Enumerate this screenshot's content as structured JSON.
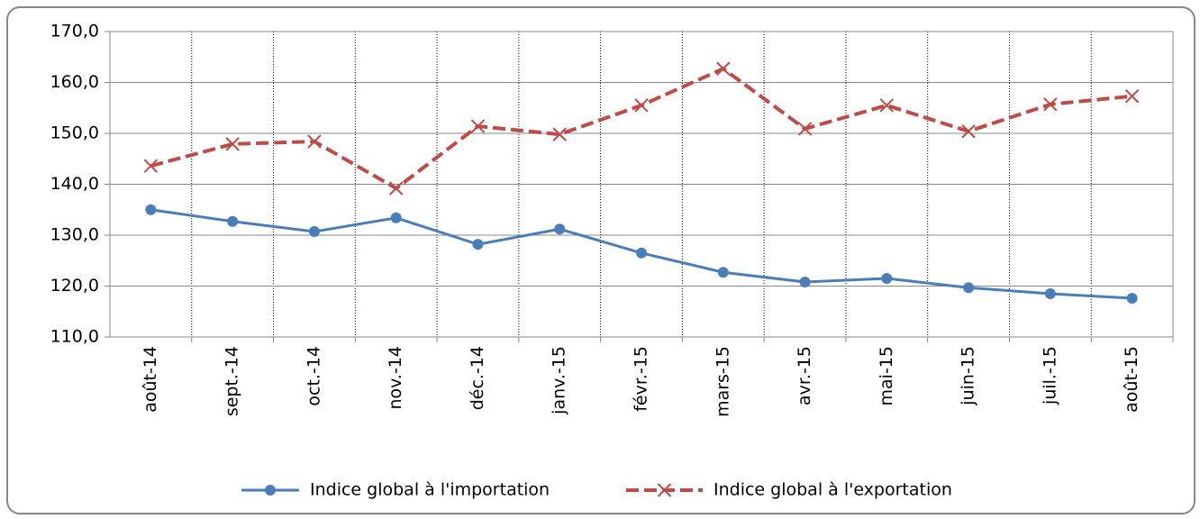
{
  "chart_data": {
    "type": "line",
    "categories": [
      "août-14",
      "sept.-14",
      "oct.-14",
      "nov.-14",
      "déc.-14",
      "janv.-15",
      "févr.-15",
      "mars-15",
      "avr.-15",
      "mai-15",
      "juin-15",
      "juil.-15",
      "août-15"
    ],
    "series": [
      {
        "name": "Indice global à l'importation",
        "color": "#4a7ebb",
        "marker": "circle",
        "dashed": false,
        "values": [
          135.0,
          132.7,
          130.7,
          133.4,
          128.2,
          131.2,
          126.5,
          122.7,
          120.8,
          121.5,
          119.7,
          118.5,
          117.6
        ]
      },
      {
        "name": "Indice global à l'exportation",
        "color": "#be4b48",
        "marker": "x",
        "dashed": true,
        "values": [
          143.6,
          147.9,
          148.4,
          139.2,
          151.4,
          149.8,
          155.5,
          162.7,
          150.9,
          155.5,
          150.4,
          155.7,
          157.3
        ]
      }
    ],
    "ylim": [
      110,
      170
    ],
    "yticks": [
      {
        "value": 110,
        "label": "110,0"
      },
      {
        "value": 120,
        "label": "120,0"
      },
      {
        "value": 130,
        "label": "130,0"
      },
      {
        "value": 140,
        "label": "140,0"
      },
      {
        "value": 150,
        "label": "150,0"
      },
      {
        "value": 160,
        "label": "160,0"
      },
      {
        "value": 170,
        "label": "170,0"
      }
    ],
    "grid": true,
    "legend": "bottom"
  }
}
